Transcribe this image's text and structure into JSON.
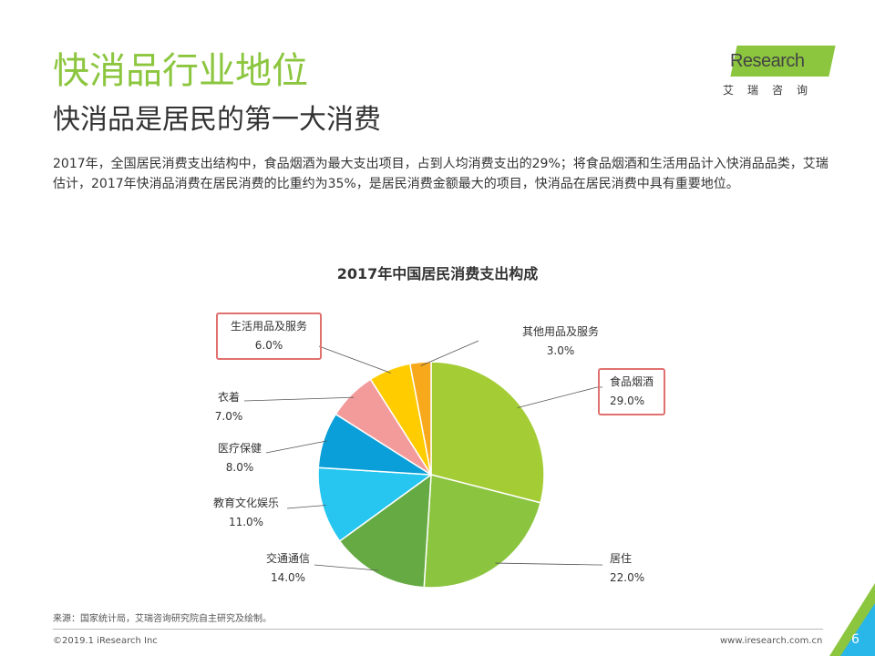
{
  "header": {
    "title": "快消品行业地位",
    "subtitle": "快消品是居民的第一大消费",
    "description": "2017年，全国居民消费支出结构中，食品烟酒为最大支出项目，占到人均消费支出的29%；将食品烟酒和生活用品计入快消品品类，艾瑞估计，2017年快消品消费在居民消费的比重约为35%，是居民消费金额最大的项目，快消品在居民消费中具有重要地位。"
  },
  "logo": {
    "mark": "i",
    "text": "Research",
    "cn": "艾瑞咨询"
  },
  "chart_data": {
    "type": "pie",
    "title": "2017年中国居民消费支出构成",
    "slices": [
      {
        "label": "食品烟酒",
        "value": 29.0,
        "display": "29.0%",
        "color": "#a4cc34",
        "highlight": true
      },
      {
        "label": "居住",
        "value": 22.0,
        "display": "22.0%",
        "color": "#8bc53f",
        "highlight": false
      },
      {
        "label": "交通通信",
        "value": 14.0,
        "display": "14.0%",
        "color": "#66aa44",
        "highlight": false
      },
      {
        "label": "教育文化娱乐",
        "value": 11.0,
        "display": "11.0%",
        "color": "#26c6f0",
        "highlight": false
      },
      {
        "label": "医疗保健",
        "value": 8.0,
        "display": "8.0%",
        "color": "#0a9fd8",
        "highlight": false
      },
      {
        "label": "衣着",
        "value": 7.0,
        "display": "7.0%",
        "color": "#f39b9b",
        "highlight": false
      },
      {
        "label": "生活用品及服务",
        "value": 6.0,
        "display": "6.0%",
        "color": "#ffcc00",
        "highlight": true
      },
      {
        "label": "其他用品及服务",
        "value": 3.0,
        "display": "3.0%",
        "color": "#f7a81b",
        "highlight": false
      }
    ]
  },
  "footer": {
    "source": "来源：国家统计局，艾瑞咨询研究院自主研究及绘制。",
    "copyright": "©2019.1 iResearch Inc",
    "website": "www.iresearch.com.cn",
    "page": "6"
  },
  "colors": {
    "accent": "#8cc63f",
    "highlight_border": "#e0716f",
    "corner_blue": "#29b6e8"
  }
}
